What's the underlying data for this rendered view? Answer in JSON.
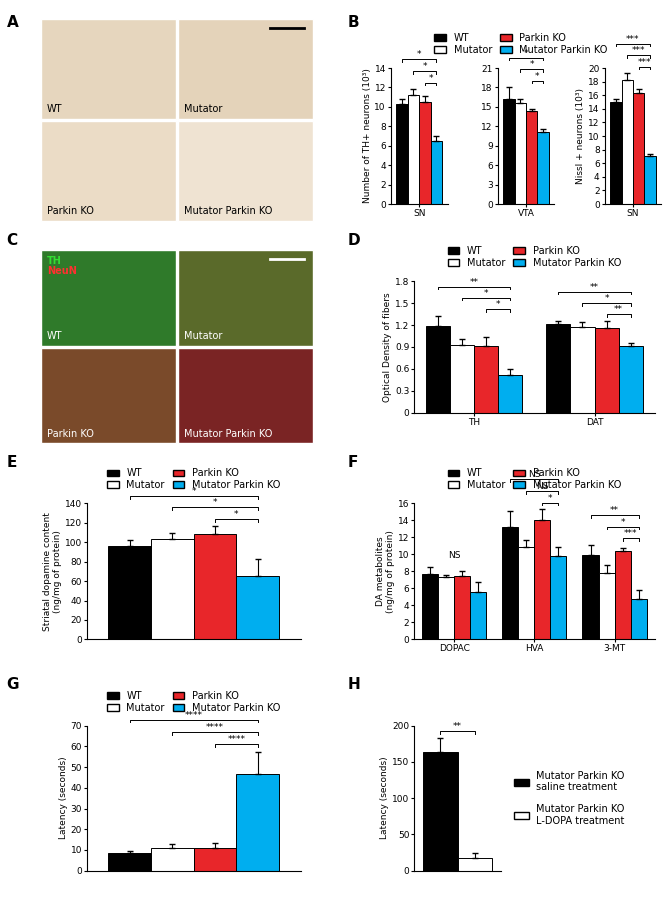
{
  "chart_data": [
    {
      "type": "image",
      "panel": "A",
      "labels": [
        "WT",
        "Mutator",
        "Parkin KO",
        "Mutator Parkin KO"
      ],
      "colors": [
        "#e6d6be",
        "#e4d3ba",
        "#ebdcc6",
        "#efe3d2"
      ]
    },
    {
      "type": "bar",
      "panel": "B",
      "categories": [
        "SN"
      ],
      "ylabel": "Number of TH+ neurons (10³)",
      "ylim": [
        0,
        14
      ],
      "yticks": [
        0,
        2,
        4,
        6,
        8,
        10,
        12,
        14
      ],
      "legend": "top",
      "series": [
        {
          "name": "WT",
          "color": "#000000",
          "values": [
            10.3
          ],
          "errors": [
            0.5
          ]
        },
        {
          "name": "Mutator",
          "color": "#ffffff",
          "values": [
            11.2
          ],
          "errors": [
            0.6
          ]
        },
        {
          "name": "Parkin KO",
          "color": "#e8262a",
          "values": [
            10.5
          ],
          "errors": [
            0.6
          ]
        },
        {
          "name": "Mutator Parkin KO",
          "color": "#00aeef",
          "values": [
            6.5
          ],
          "errors": [
            0.5
          ]
        }
      ],
      "comparisons": [
        {
          "category": "SN",
          "pair": [
            "Parkin KO",
            "Mutator Parkin KO"
          ],
          "label": "*"
        },
        {
          "category": "SN",
          "pair": [
            "Mutator",
            "Mutator Parkin KO"
          ],
          "label": "*"
        },
        {
          "category": "SN",
          "pair": [
            "WT",
            "Mutator Parkin KO"
          ],
          "label": "*"
        }
      ]
    },
    {
      "type": "bar",
      "categories": [
        "VTA"
      ],
      "ylim": [
        0,
        21
      ],
      "yticks": [
        0,
        3,
        6,
        9,
        12,
        15,
        18,
        21
      ],
      "series": [
        {
          "name": "WT",
          "color": "#000000",
          "values": [
            16.2
          ],
          "errors": [
            1.8
          ]
        },
        {
          "name": "Mutator",
          "color": "#ffffff",
          "values": [
            15.6
          ],
          "errors": [
            0.6
          ]
        },
        {
          "name": "Parkin KO",
          "color": "#e8262a",
          "values": [
            14.3
          ],
          "errors": [
            0.3
          ]
        },
        {
          "name": "Mutator Parkin KO",
          "color": "#00aeef",
          "values": [
            11.1
          ],
          "errors": [
            0.5
          ]
        }
      ],
      "comparisons": [
        {
          "category": "VTA",
          "pair": [
            "Parkin KO",
            "Mutator Parkin KO"
          ],
          "label": "*"
        },
        {
          "category": "VTA",
          "pair": [
            "Mutator",
            "Mutator Parkin KO"
          ],
          "label": "*"
        },
        {
          "category": "VTA",
          "pair": [
            "WT",
            "Mutator Parkin KO"
          ],
          "label": "*"
        }
      ]
    },
    {
      "type": "bar",
      "categories": [
        "SN"
      ],
      "ylabel": "Nissl + neurons (10³)",
      "ylim": [
        0,
        20
      ],
      "yticks": [
        0,
        2,
        4,
        6,
        8,
        10,
        12,
        14,
        16,
        18,
        20
      ],
      "series": [
        {
          "name": "WT",
          "color": "#000000",
          "values": [
            15.0
          ],
          "errors": [
            0.5
          ]
        },
        {
          "name": "Mutator",
          "color": "#ffffff",
          "values": [
            18.2
          ],
          "errors": [
            1.0
          ]
        },
        {
          "name": "Parkin KO",
          "color": "#e8262a",
          "values": [
            16.3
          ],
          "errors": [
            0.6
          ]
        },
        {
          "name": "Mutator Parkin KO",
          "color": "#00aeef",
          "values": [
            7.0
          ],
          "errors": [
            0.3
          ]
        }
      ],
      "comparisons": [
        {
          "category": "SN",
          "pair": [
            "Parkin KO",
            "Mutator Parkin KO"
          ],
          "label": "***"
        },
        {
          "category": "SN",
          "pair": [
            "Mutator",
            "Mutator Parkin KO"
          ],
          "label": "***"
        },
        {
          "category": "SN",
          "pair": [
            "WT",
            "Mutator Parkin KO"
          ],
          "label": "***"
        }
      ]
    },
    {
      "type": "image",
      "panel": "C",
      "labels": [
        "WT",
        "Mutator",
        "Parkin KO",
        "Mutator Parkin KO"
      ],
      "colors": [
        "#2f7a2a",
        "#5a6a2a",
        "#7a4a2a",
        "#7a2424"
      ],
      "channels": [
        {
          "name": "TH",
          "color": "#33dd33"
        },
        {
          "name": "NeuN",
          "color": "#ff3030"
        }
      ]
    },
    {
      "type": "bar",
      "panel": "D",
      "categories": [
        "TH",
        "DAT"
      ],
      "ylabel": "Optical Density of fibers",
      "ylim": [
        0,
        1.8
      ],
      "yticks": [
        0,
        0.3,
        0.6,
        0.9,
        1.2,
        1.5,
        1.8
      ],
      "legend": "top",
      "series": [
        {
          "name": "WT",
          "color": "#000000",
          "values": [
            1.18,
            1.21
          ],
          "errors": [
            0.15,
            0.05
          ]
        },
        {
          "name": "Mutator",
          "color": "#ffffff",
          "values": [
            0.93,
            1.17
          ],
          "errors": [
            0.08,
            0.07
          ]
        },
        {
          "name": "Parkin KO",
          "color": "#e8262a",
          "values": [
            0.91,
            1.16
          ],
          "errors": [
            0.12,
            0.1
          ]
        },
        {
          "name": "Mutator Parkin KO",
          "color": "#00aeef",
          "values": [
            0.52,
            0.91
          ],
          "errors": [
            0.08,
            0.05
          ]
        }
      ],
      "comparisons": [
        {
          "category": "TH",
          "pair": [
            "Parkin KO",
            "Mutator Parkin KO"
          ],
          "label": "*"
        },
        {
          "category": "TH",
          "pair": [
            "Mutator",
            "Mutator Parkin KO"
          ],
          "label": "*"
        },
        {
          "category": "TH",
          "pair": [
            "WT",
            "Mutator Parkin KO"
          ],
          "label": "**"
        },
        {
          "category": "DAT",
          "pair": [
            "Parkin KO",
            "Mutator Parkin KO"
          ],
          "label": "**"
        },
        {
          "category": "DAT",
          "pair": [
            "Mutator",
            "Mutator Parkin KO"
          ],
          "label": "*"
        },
        {
          "category": "DAT",
          "pair": [
            "WT",
            "Mutator Parkin KO"
          ],
          "label": "**"
        }
      ]
    },
    {
      "type": "bar",
      "panel": "E",
      "categories": [
        null
      ],
      "ylabel": "Striatal dopamine content\n(ng/mg of protein)",
      "ylim": [
        0,
        140
      ],
      "yticks": [
        0,
        20,
        40,
        60,
        80,
        100,
        120,
        140
      ],
      "legend": "top",
      "series": [
        {
          "name": "WT",
          "color": "#000000",
          "values": [
            96
          ],
          "errors": [
            6
          ]
        },
        {
          "name": "Mutator",
          "color": "#ffffff",
          "values": [
            103
          ],
          "errors": [
            7
          ]
        },
        {
          "name": "Parkin KO",
          "color": "#e8262a",
          "values": [
            108
          ],
          "errors": [
            9
          ]
        },
        {
          "name": "Mutator Parkin KO",
          "color": "#00aeef",
          "values": [
            65
          ],
          "errors": [
            18
          ]
        }
      ],
      "comparisons": [
        {
          "category": null,
          "pair": [
            "Parkin KO",
            "Mutator Parkin KO"
          ],
          "label": "*"
        },
        {
          "category": null,
          "pair": [
            "Mutator",
            "Mutator Parkin KO"
          ],
          "label": "*"
        },
        {
          "category": null,
          "pair": [
            "WT",
            "Mutator Parkin KO"
          ],
          "label": "*"
        }
      ]
    },
    {
      "type": "bar",
      "panel": "F",
      "categories": [
        "DOPAC",
        "HVA",
        "3-MT"
      ],
      "ylabel": "DA metabolites\n(ng/mg of protein)",
      "ylim": [
        0,
        16
      ],
      "yticks": [
        0,
        2,
        4,
        6,
        8,
        10,
        12,
        14,
        16
      ],
      "legend": "top",
      "series": [
        {
          "name": "WT",
          "color": "#000000",
          "values": [
            7.7,
            13.2,
            9.9
          ],
          "errors": [
            0.8,
            1.9,
            1.2
          ]
        },
        {
          "name": "Mutator",
          "color": "#ffffff",
          "values": [
            7.4,
            10.9,
            7.8
          ],
          "errors": [
            0.2,
            0.8,
            0.9
          ]
        },
        {
          "name": "Parkin KO",
          "color": "#e8262a",
          "values": [
            7.5,
            14.0,
            10.4
          ],
          "errors": [
            0.6,
            1.3,
            0.3
          ]
        },
        {
          "name": "Mutator Parkin KO",
          "color": "#00aeef",
          "values": [
            5.6,
            9.8,
            4.7
          ],
          "errors": [
            1.1,
            1.1,
            1.1
          ]
        }
      ],
      "comparisons": [
        {
          "category": "DOPAC",
          "label": "NS"
        },
        {
          "category": "HVA",
          "pair": [
            "Parkin KO",
            "Mutator Parkin KO"
          ],
          "label": "*"
        },
        {
          "category": "HVA",
          "pair": [
            "Mutator",
            "Mutator Parkin KO"
          ],
          "label": "NS"
        },
        {
          "category": "HVA",
          "pair": [
            "WT",
            "Mutator Parkin KO"
          ],
          "label": "NS"
        },
        {
          "category": "3-MT",
          "pair": [
            "Parkin KO",
            "Mutator Parkin KO"
          ],
          "label": "***"
        },
        {
          "category": "3-MT",
          "pair": [
            "Mutator",
            "Mutator Parkin KO"
          ],
          "label": "*"
        },
        {
          "category": "3-MT",
          "pair": [
            "WT",
            "Mutator Parkin KO"
          ],
          "label": "**"
        }
      ]
    },
    {
      "type": "bar",
      "panel": "G",
      "categories": [
        null
      ],
      "ylabel": "Latency (seconds)",
      "ylim": [
        0,
        70
      ],
      "yticks": [
        0,
        10,
        20,
        30,
        40,
        50,
        60,
        70
      ],
      "legend": "top",
      "series": [
        {
          "name": "WT",
          "color": "#000000",
          "values": [
            8.5
          ],
          "errors": [
            1.2
          ]
        },
        {
          "name": "Mutator",
          "color": "#ffffff",
          "values": [
            11
          ],
          "errors": [
            2
          ]
        },
        {
          "name": "Parkin KO",
          "color": "#e8262a",
          "values": [
            11
          ],
          "errors": [
            2.5
          ]
        },
        {
          "name": "Mutator Parkin KO",
          "color": "#00aeef",
          "values": [
            46.5
          ],
          "errors": [
            11
          ]
        }
      ],
      "comparisons": [
        {
          "category": null,
          "pair": [
            "Parkin KO",
            "Mutator Parkin KO"
          ],
          "label": "****"
        },
        {
          "category": null,
          "pair": [
            "Mutator",
            "Mutator Parkin KO"
          ],
          "label": "****"
        },
        {
          "category": null,
          "pair": [
            "WT",
            "Mutator Parkin KO"
          ],
          "label": "****"
        }
      ]
    },
    {
      "type": "bar",
      "panel": "H",
      "categories": [
        null
      ],
      "ylabel": "Latency (seconds)",
      "ylim": [
        0,
        200
      ],
      "yticks": [
        0,
        50,
        100,
        150,
        200
      ],
      "legend": "right",
      "series": [
        {
          "name": "Mutator Parkin KO\nsaline treatment",
          "color": "#000000",
          "values": [
            163
          ],
          "errors": [
            20
          ]
        },
        {
          "name": "Mutator Parkin KO\nL-DOPA treatment",
          "color": "#ffffff",
          "values": [
            18
          ],
          "errors": [
            6
          ]
        }
      ],
      "comparisons": [
        {
          "category": null,
          "pair": [
            "Mutator Parkin KO\nsaline treatment",
            "Mutator Parkin KO\nL-DOPA treatment"
          ],
          "label": "**"
        }
      ]
    }
  ]
}
